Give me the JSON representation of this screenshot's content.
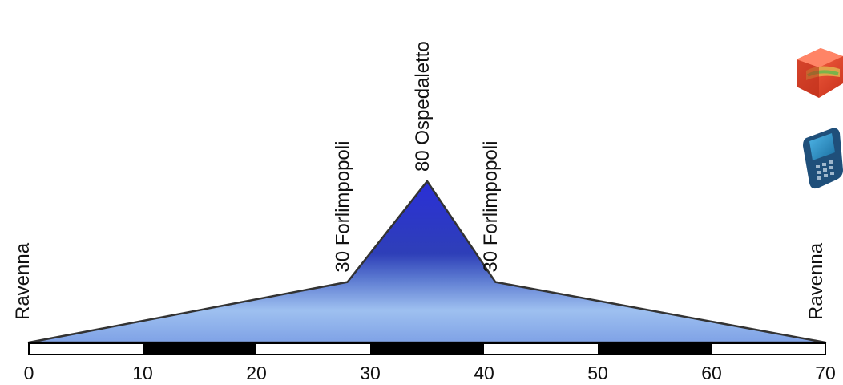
{
  "profile": {
    "x_unit": "km",
    "y_unit": "m",
    "points": [
      {
        "km": 0,
        "elev": 0,
        "label": "Ravenna"
      },
      {
        "km": 28,
        "elev": 30,
        "label": "30 Forlimpopoli"
      },
      {
        "km": 35,
        "elev": 80,
        "label": "80 Ospedaletto"
      },
      {
        "km": 41,
        "elev": 30,
        "label": "30 Forlimpopoli"
      },
      {
        "km": 70,
        "elev": 0,
        "label": "Ravenna"
      }
    ]
  },
  "scale_bar": {
    "ticks": [
      "0",
      "10",
      "20",
      "30",
      "40",
      "50",
      "60",
      "70"
    ],
    "segment_colors": [
      "#ffffff",
      "#000000",
      "#ffffff",
      "#000000",
      "#ffffff",
      "#000000",
      "#ffffff"
    ]
  },
  "icons": [
    {
      "name": "food-box-icon",
      "meaning": "refreshment"
    },
    {
      "name": "mobile-phone-icon",
      "meaning": "phone"
    }
  ],
  "colors": {
    "fill_top": "#2a2fd6",
    "fill_mid": "#3b4fc4",
    "fill_bottom": "#a9c6f2",
    "outline": "#333333"
  }
}
